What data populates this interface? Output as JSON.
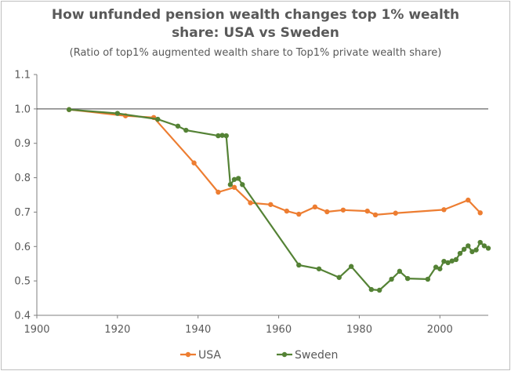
{
  "chart_data": {
    "type": "line",
    "title": "How unfunded pension wealth changes top 1% wealth share: USA vs Sweden",
    "title_lines": [
      "How unfunded pension wealth changes top 1% wealth",
      "share: USA vs Sweden"
    ],
    "subtitle": "(Ratio of top1% augmented wealth share to Top1% private wealth share)",
    "xlabel": "",
    "ylabel": "",
    "xlim": [
      1900,
      2012
    ],
    "ylim": [
      0.4,
      1.1
    ],
    "x_ticks": [
      "1900",
      "1920",
      "1940",
      "1960",
      "1980",
      "2000"
    ],
    "y_ticks": [
      "0.4",
      "0.5",
      "0.6",
      "0.7",
      "0.8",
      "0.9",
      "1.0",
      "1.1"
    ],
    "reference_line": 1.0,
    "grid": false,
    "legend_position": "bottom",
    "series": [
      {
        "name": "USA",
        "color": "#ed7d31",
        "points": [
          [
            1908,
            0.998
          ],
          [
            1922,
            0.98
          ],
          [
            1929,
            0.975
          ],
          [
            1939,
            0.843
          ],
          [
            1945,
            0.758
          ],
          [
            1949,
            0.772
          ],
          [
            1953,
            0.727
          ],
          [
            1958,
            0.722
          ],
          [
            1962,
            0.703
          ],
          [
            1965,
            0.694
          ],
          [
            1969,
            0.715
          ],
          [
            1972,
            0.701
          ],
          [
            1976,
            0.706
          ],
          [
            1982,
            0.703
          ],
          [
            1984,
            0.692
          ],
          [
            1989,
            0.697
          ],
          [
            2001,
            0.707
          ],
          [
            2007,
            0.735
          ],
          [
            2010,
            0.698
          ]
        ]
      },
      {
        "name": "Sweden",
        "color": "#548235",
        "points": [
          [
            1908,
            0.998
          ],
          [
            1920,
            0.987
          ],
          [
            1930,
            0.97
          ],
          [
            1935,
            0.95
          ],
          [
            1937,
            0.938
          ],
          [
            1945,
            0.922
          ],
          [
            1946,
            0.923
          ],
          [
            1947,
            0.922
          ],
          [
            1948,
            0.78
          ],
          [
            1949,
            0.795
          ],
          [
            1950,
            0.798
          ],
          [
            1951,
            0.78
          ],
          [
            1965,
            0.546
          ],
          [
            1970,
            0.535
          ],
          [
            1975,
            0.51
          ],
          [
            1978,
            0.542
          ],
          [
            1983,
            0.475
          ],
          [
            1985,
            0.473
          ],
          [
            1988,
            0.505
          ],
          [
            1990,
            0.528
          ],
          [
            1992,
            0.507
          ],
          [
            1997,
            0.505
          ],
          [
            1999,
            0.54
          ],
          [
            2000,
            0.535
          ],
          [
            2001,
            0.557
          ],
          [
            2002,
            0.553
          ],
          [
            2003,
            0.558
          ],
          [
            2004,
            0.562
          ],
          [
            2005,
            0.58
          ],
          [
            2006,
            0.592
          ],
          [
            2007,
            0.602
          ],
          [
            2008,
            0.585
          ],
          [
            2009,
            0.59
          ],
          [
            2010,
            0.612
          ],
          [
            2011,
            0.602
          ],
          [
            2012,
            0.595
          ]
        ]
      }
    ]
  }
}
